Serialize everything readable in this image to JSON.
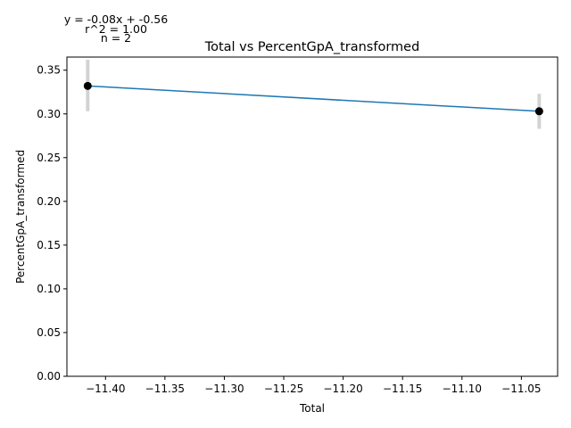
{
  "chart_data": {
    "type": "scatter",
    "title": "Total vs PercentGpA_transformed",
    "xlabel": "Total",
    "ylabel": "PercentGpA_transformed",
    "xlim": [
      -11.4325,
      -11.0195
    ],
    "ylim": [
      0.0,
      0.365
    ],
    "x_ticks": [
      -11.4,
      -11.35,
      -11.3,
      -11.25,
      -11.2,
      -11.15,
      -11.1,
      -11.05
    ],
    "x_tick_labels": [
      "−11.40",
      "−11.35",
      "−11.30",
      "−11.25",
      "−11.20",
      "−11.15",
      "−11.10",
      "−11.05"
    ],
    "y_ticks": [
      0.0,
      0.05,
      0.1,
      0.15,
      0.2,
      0.25,
      0.3,
      0.35
    ],
    "y_tick_labels": [
      "0.00",
      "0.05",
      "0.10",
      "0.15",
      "0.20",
      "0.25",
      "0.30",
      "0.35"
    ],
    "points": [
      {
        "x": -11.415,
        "y": 0.332,
        "err_low": 0.303,
        "err_high": 0.362
      },
      {
        "x": -11.035,
        "y": 0.303,
        "err_low": 0.283,
        "err_high": 0.323
      }
    ],
    "fit_line": {
      "x": [
        -11.415,
        -11.035
      ],
      "y": [
        0.332,
        0.303
      ]
    },
    "annotations": [
      "y = -0.08x + -0.56",
      "r^2 = 1.00",
      "n = 2"
    ],
    "grid": false,
    "colors": {
      "line": "#1f77b4",
      "points": "#000000",
      "error_bars": "#d3d3d3"
    }
  }
}
